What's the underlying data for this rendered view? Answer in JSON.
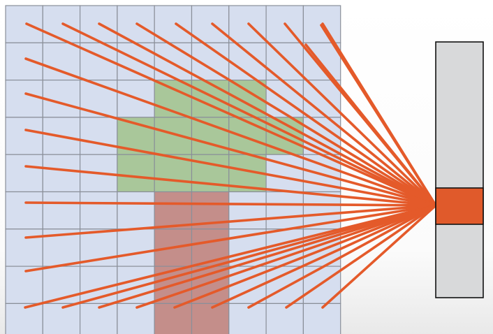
{
  "grid": {
    "rows": 9,
    "cols": 9,
    "cell_color": "#d6deef",
    "line_color": "#8a8f99",
    "highlighted_cells": [
      {
        "region": "green",
        "color": "#a9c79a",
        "cells": [
          [
            2,
            4
          ],
          [
            2,
            5
          ],
          [
            2,
            6
          ],
          [
            3,
            3
          ],
          [
            3,
            4
          ],
          [
            3,
            5
          ],
          [
            3,
            6
          ],
          [
            3,
            7
          ],
          [
            4,
            3
          ],
          [
            4,
            4
          ],
          [
            4,
            5
          ],
          [
            4,
            6
          ]
        ]
      },
      {
        "region": "red",
        "color": "#c48e8a",
        "cells": [
          [
            5,
            4
          ],
          [
            5,
            5
          ],
          [
            6,
            4
          ],
          [
            6,
            5
          ],
          [
            7,
            4
          ],
          [
            7,
            5
          ],
          [
            8,
            4
          ],
          [
            8,
            5
          ]
        ]
      }
    ]
  },
  "output_vector": {
    "cells": 3,
    "active_index": 1,
    "cell_color": "#d8d9da",
    "active_color": "#e05a2b",
    "border_color": "#111111"
  },
  "connections": {
    "color": "#e45a2a",
    "description_count": 34
  }
}
